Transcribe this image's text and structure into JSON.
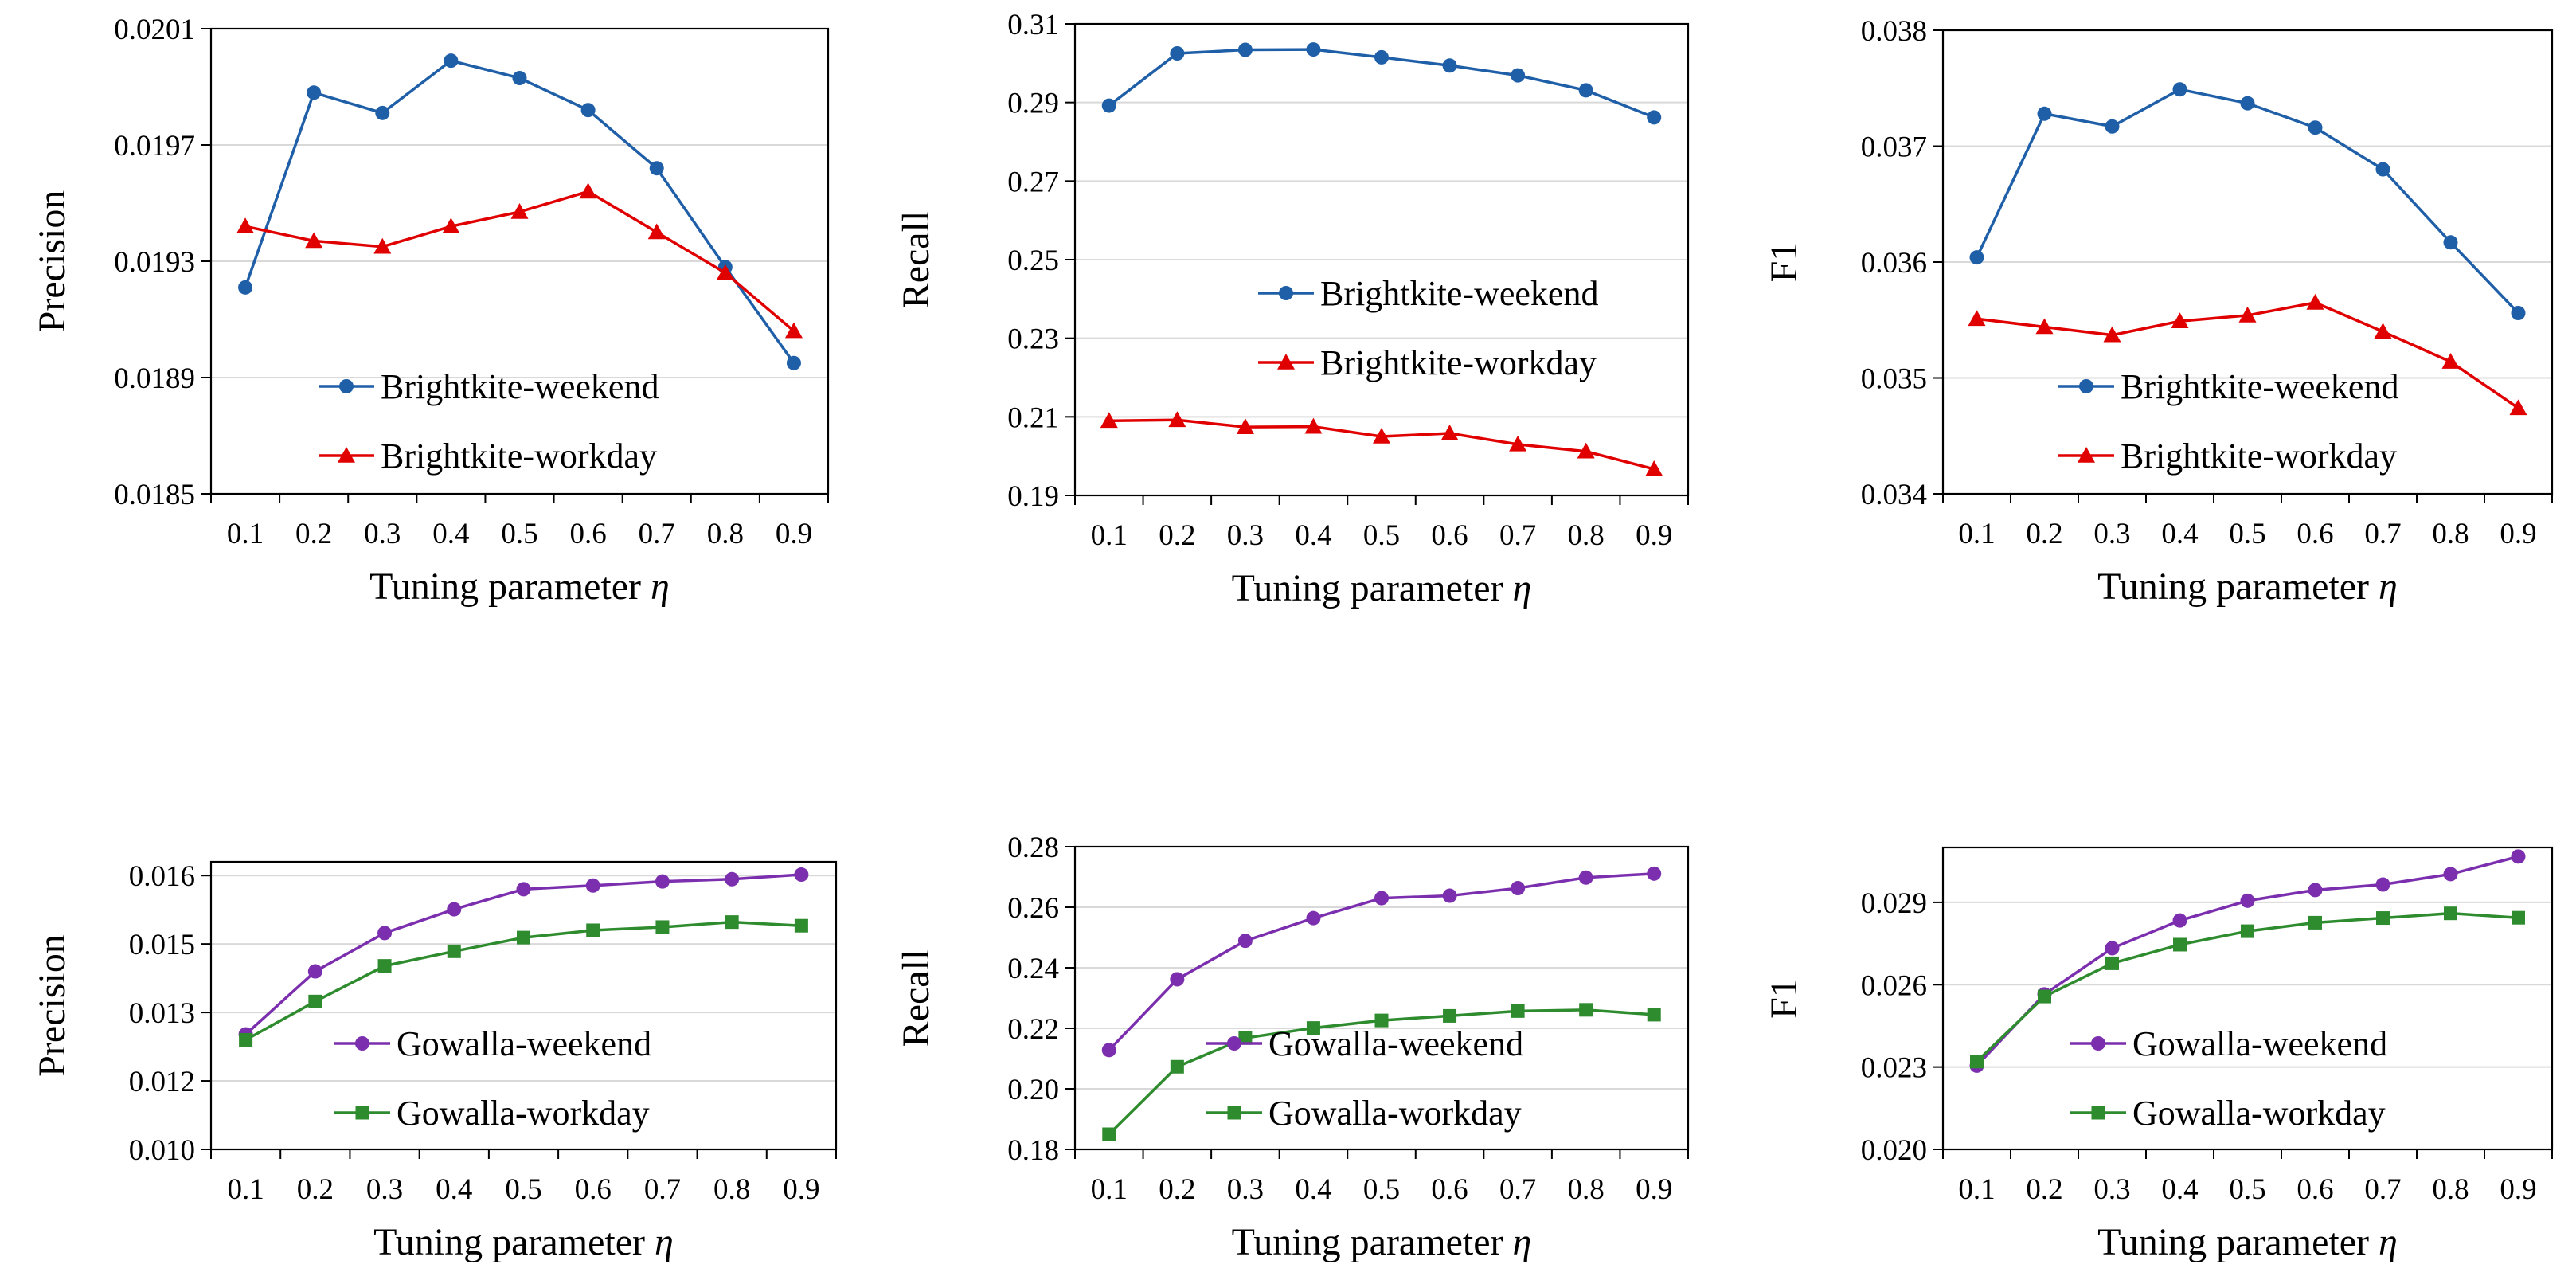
{
  "colors": {
    "weekend_blue": "#1f5fa8",
    "workday_red": "#e00000",
    "weekend_purple": "#7b2fae",
    "workday_green": "#2e8b2e",
    "grid": "#d9d9d9",
    "axis": "#000000"
  },
  "chart_data": [
    {
      "type": "line",
      "x": [
        0.1,
        0.2,
        0.3,
        0.4,
        0.5,
        0.6,
        0.7,
        0.8,
        0.9
      ],
      "xticks": [
        "0.1",
        "0.2",
        "0.3",
        "0.4",
        "0.5",
        "0.6",
        "0.7",
        "0.8",
        "0.9"
      ],
      "xlabel_text": "Tuning parameter ",
      "xlabel_symbol": "η",
      "ylabel": "Precision",
      "ylim": [
        0.0185,
        0.0201
      ],
      "yticks": [
        "0.0185",
        "0.0189",
        "0.0193",
        "0.0197",
        "0.0201"
      ],
      "legend_position": "lower-center",
      "grid": true,
      "series": [
        {
          "name": "Brightkite-weekend",
          "marker": "circle",
          "color": "#1f5fa8",
          "values": [
            0.01921,
            0.01988,
            0.01981,
            0.01999,
            0.01993,
            0.01982,
            0.01962,
            0.01928,
            0.01895
          ]
        },
        {
          "name": "Brightkite-workday",
          "marker": "triangle",
          "color": "#e00000",
          "values": [
            0.01942,
            0.01937,
            0.01935,
            0.01942,
            0.01947,
            0.01954,
            0.0194,
            0.01926,
            0.01906
          ]
        }
      ]
    },
    {
      "type": "line",
      "x": [
        0.1,
        0.2,
        0.3,
        0.4,
        0.5,
        0.6,
        0.7,
        0.8,
        0.9
      ],
      "xticks": [
        "0.1",
        "0.2",
        "0.3",
        "0.4",
        "0.5",
        "0.6",
        "0.7",
        "0.8",
        "0.9"
      ],
      "xlabel_text": "Tuning parameter ",
      "xlabel_symbol": "η",
      "ylabel": "Recall",
      "ylim": [
        0.19,
        0.31
      ],
      "yticks": [
        "0.19",
        "0.21",
        "0.23",
        "0.25",
        "0.27",
        "0.29",
        "0.31"
      ],
      "legend_position": "center-right",
      "grid": true,
      "series": [
        {
          "name": "Brightkite-weekend",
          "marker": "circle",
          "color": "#1f5fa8",
          "values": [
            0.2892,
            0.3025,
            0.3034,
            0.3035,
            0.3015,
            0.2994,
            0.2969,
            0.2931,
            0.2862
          ]
        },
        {
          "name": "Brightkite-workday",
          "marker": "triangle",
          "color": "#e00000",
          "values": [
            0.209,
            0.2092,
            0.2074,
            0.2075,
            0.205,
            0.2058,
            0.203,
            0.2012,
            0.1967
          ]
        }
      ]
    },
    {
      "type": "line",
      "x": [
        0.1,
        0.2,
        0.3,
        0.4,
        0.5,
        0.6,
        0.7,
        0.8,
        0.9
      ],
      "xticks": [
        "0.1",
        "0.2",
        "0.3",
        "0.4",
        "0.5",
        "0.6",
        "0.7",
        "0.8",
        "0.9"
      ],
      "xlabel_text": "Tuning parameter ",
      "xlabel_symbol": "η",
      "ylabel": "F1",
      "ylim": [
        0.034,
        0.038
      ],
      "yticks": [
        "0.034",
        "0.035",
        "0.036",
        "0.037",
        "0.038"
      ],
      "legend_position": "lower-center",
      "grid": true,
      "series": [
        {
          "name": "Brightkite-weekend",
          "marker": "circle",
          "color": "#1f5fa8",
          "values": [
            0.03604,
            0.03728,
            0.03717,
            0.03749,
            0.03737,
            0.03716,
            0.0368,
            0.03617,
            0.03556
          ]
        },
        {
          "name": "Brightkite-workday",
          "marker": "triangle",
          "color": "#e00000",
          "values": [
            0.03551,
            0.03544,
            0.03537,
            0.03549,
            0.03554,
            0.03565,
            0.0354,
            0.03514,
            0.03474
          ]
        }
      ]
    },
    {
      "type": "line",
      "x": [
        0.1,
        0.2,
        0.3,
        0.4,
        0.5,
        0.6,
        0.7,
        0.8,
        0.9
      ],
      "xticks": [
        "0.1",
        "0.2",
        "0.3",
        "0.4",
        "0.5",
        "0.6",
        "0.7",
        "0.8",
        "0.9"
      ],
      "xlabel_text": "Tuning parameter ",
      "xlabel_symbol": "η",
      "ylabel": "Precision",
      "ylim": [
        0.0105,
        0.0168
      ],
      "yticks": [
        "0.010",
        "0.012",
        "0.013",
        "0.015",
        "0.016"
      ],
      "ytick_values": [
        0.0105,
        0.012,
        0.0135,
        0.015,
        0.0165
      ],
      "legend_position": "lower-center",
      "grid": true,
      "series": [
        {
          "name": "Gowalla-weekend",
          "marker": "circle",
          "color": "#7b2fae",
          "values": [
            0.01302,
            0.0144,
            0.01524,
            0.01576,
            0.0162,
            0.01628,
            0.01637,
            0.01642,
            0.01652
          ]
        },
        {
          "name": "Gowalla-workday",
          "marker": "square",
          "color": "#2e8b2e",
          "values": [
            0.0129,
            0.01374,
            0.01452,
            0.01484,
            0.01514,
            0.0153,
            0.01537,
            0.01548,
            0.0154
          ]
        }
      ]
    },
    {
      "type": "line",
      "x": [
        0.1,
        0.2,
        0.3,
        0.4,
        0.5,
        0.6,
        0.7,
        0.8,
        0.9
      ],
      "xticks": [
        "0.1",
        "0.2",
        "0.3",
        "0.4",
        "0.5",
        "0.6",
        "0.7",
        "0.8",
        "0.9"
      ],
      "xlabel_text": "Tuning parameter ",
      "xlabel_symbol": "η",
      "ylabel": "Recall",
      "ylim": [
        0.18,
        0.28
      ],
      "yticks": [
        "0.18",
        "0.20",
        "0.22",
        "0.24",
        "0.26",
        "0.28"
      ],
      "legend_position": "lower-center",
      "grid": true,
      "series": [
        {
          "name": "Gowalla-weekend",
          "marker": "circle",
          "color": "#7b2fae",
          "values": [
            0.2128,
            0.2362,
            0.2489,
            0.2564,
            0.263,
            0.2638,
            0.2663,
            0.2698,
            0.2711
          ]
        },
        {
          "name": "Gowalla-workday",
          "marker": "square",
          "color": "#2e8b2e",
          "values": [
            0.185,
            0.2073,
            0.2168,
            0.2201,
            0.2226,
            0.2241,
            0.2257,
            0.2261,
            0.2245
          ]
        }
      ]
    },
    {
      "type": "line",
      "x": [
        0.1,
        0.2,
        0.3,
        0.4,
        0.5,
        0.6,
        0.7,
        0.8,
        0.9
      ],
      "xticks": [
        "0.1",
        "0.2",
        "0.3",
        "0.4",
        "0.5",
        "0.6",
        "0.7",
        "0.8",
        "0.9"
      ],
      "xlabel_text": "Tuning parameter ",
      "xlabel_symbol": "η",
      "ylabel": "F1",
      "ylim": [
        0.02,
        0.031
      ],
      "yticks": [
        "0.020",
        "0.023",
        "0.026",
        "0.029"
      ],
      "ytick_values": [
        0.02,
        0.023,
        0.026,
        0.029
      ],
      "legend_position": "lower-center",
      "grid": true,
      "series": [
        {
          "name": "Gowalla-weekend",
          "marker": "circle",
          "color": "#7b2fae",
          "values": [
            0.02305,
            0.02565,
            0.02733,
            0.02834,
            0.02906,
            0.02945,
            0.02965,
            0.03003,
            0.03067
          ]
        },
        {
          "name": "Gowalla-workday",
          "marker": "square",
          "color": "#2e8b2e",
          "values": [
            0.0232,
            0.02557,
            0.02678,
            0.02746,
            0.02795,
            0.02826,
            0.02843,
            0.0286,
            0.02844
          ]
        }
      ]
    }
  ]
}
